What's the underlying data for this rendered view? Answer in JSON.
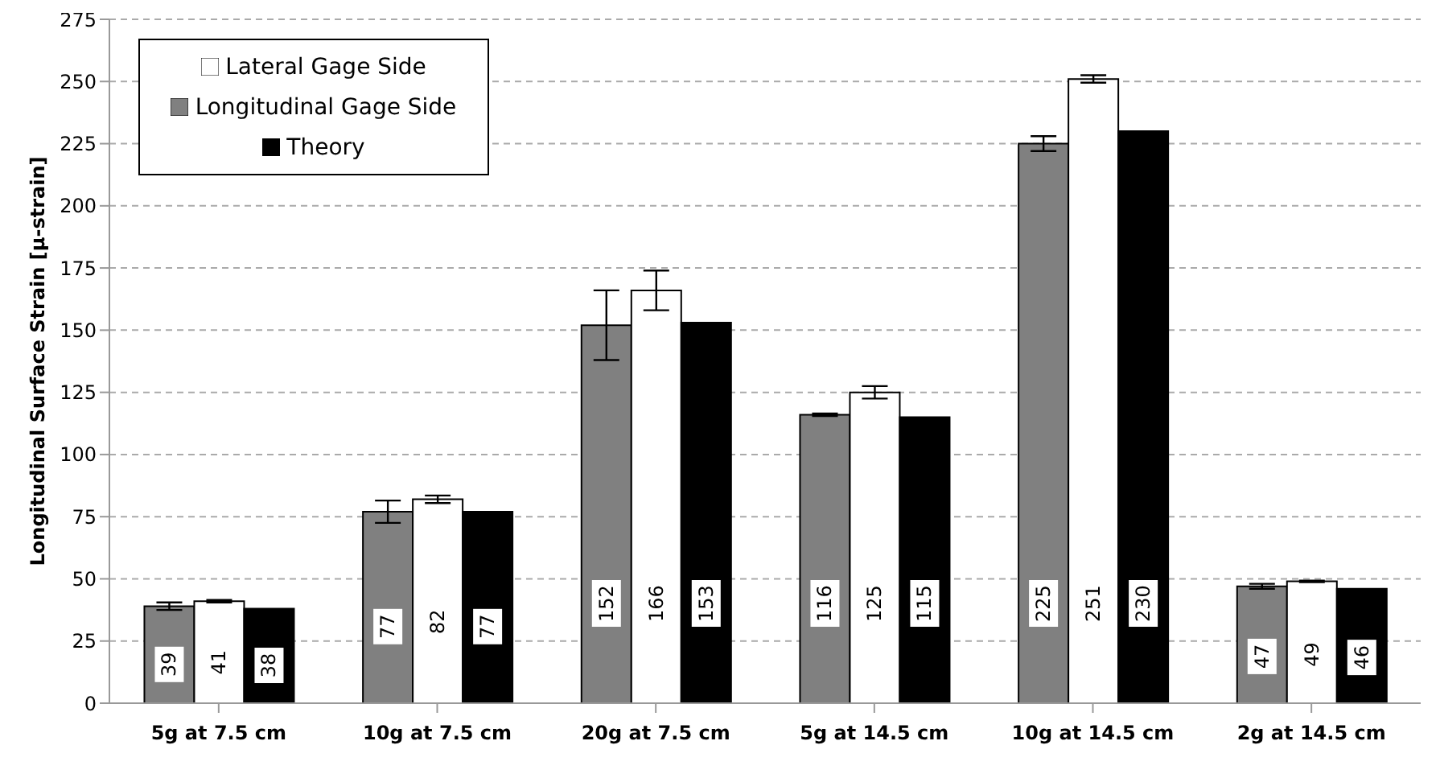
{
  "chart_data": {
    "type": "bar",
    "ylabel": "Longitudinal Surface Strain [μ-strain]",
    "categories": [
      "5g at 7.5 cm",
      "10g at 7.5 cm",
      "20g at 7.5 cm",
      "5g at 14.5 cm",
      "10g at 14.5 cm",
      "2g at 14.5 cm"
    ],
    "series": [
      {
        "name": "Longitudinal Gage Side",
        "color": "#808080",
        "values": [
          39,
          77,
          152,
          116,
          225,
          47
        ],
        "errors": [
          1.5,
          4.5,
          14,
          0.5,
          3,
          1
        ]
      },
      {
        "name": "Lateral Gage Side",
        "color": "#ffffff",
        "values": [
          41,
          82,
          166,
          125,
          251,
          49
        ],
        "errors": [
          0.5,
          1.5,
          8,
          2.5,
          1.5,
          0.3
        ]
      },
      {
        "name": "Theory",
        "color": "#000000",
        "values": [
          38,
          77,
          153,
          115,
          230,
          46
        ]
      }
    ],
    "ylim": [
      0,
      275
    ],
    "yticks": [
      0,
      25,
      50,
      75,
      100,
      125,
      150,
      175,
      200,
      225,
      250,
      275
    ],
    "grid": "y",
    "legend": "top left",
    "data_labels": true
  }
}
